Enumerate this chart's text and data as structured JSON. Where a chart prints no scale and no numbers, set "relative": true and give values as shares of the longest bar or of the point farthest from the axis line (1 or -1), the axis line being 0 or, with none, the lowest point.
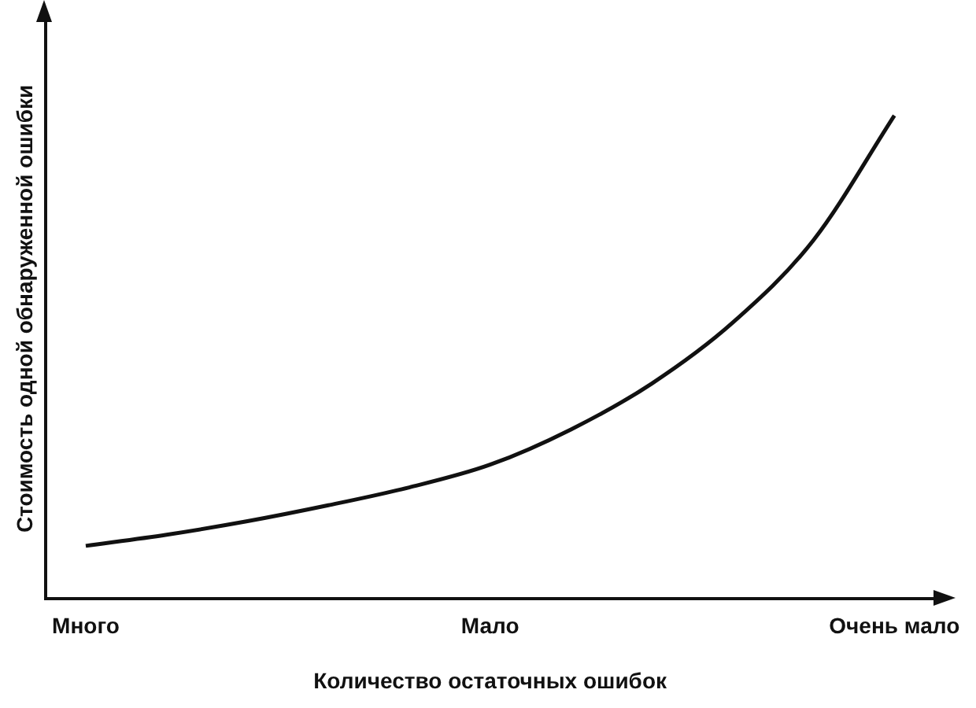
{
  "chart_data": {
    "type": "line",
    "relative": true,
    "xlabel": "Количество остаточных ошибок",
    "ylabel": "Стоимость одной обнаруженной ошибки",
    "categories": [
      "Много",
      null,
      null,
      null,
      null,
      "Мало",
      null,
      null,
      null,
      null,
      "Очень мало"
    ],
    "series": [
      {
        "color": "#111111",
        "values": [
          0.109,
          0.132,
          0.16,
          0.193,
          0.23,
          0.277,
          0.35,
          0.445,
          0.571,
          0.742,
          1.0
        ]
      }
    ],
    "legend": false,
    "grid": false,
    "marker": "none",
    "line_style": "solid"
  }
}
